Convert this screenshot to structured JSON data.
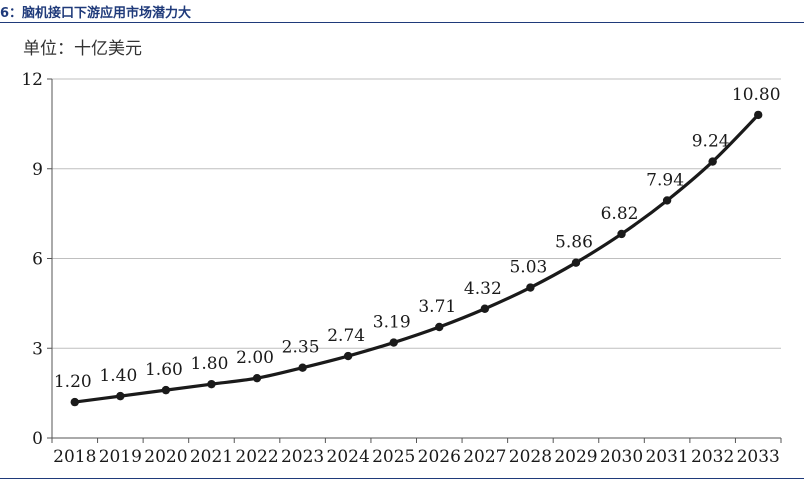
{
  "header": {
    "title": "6：脑机接口下游应用市场潜力大",
    "unit": "单位：十亿美元"
  },
  "chart_data": {
    "type": "line",
    "title": "脑机接口下游应用市场潜力大",
    "xlabel": "",
    "ylabel": "单位：十亿美元",
    "categories": [
      "2018",
      "2019",
      "2020",
      "2021",
      "2022",
      "2023",
      "2024",
      "2025",
      "2026",
      "2027",
      "2028",
      "2029",
      "2030",
      "2031",
      "2032",
      "2033"
    ],
    "series": [
      {
        "values": [
          1.2,
          1.4,
          1.6,
          1.8,
          2.0,
          2.35,
          2.74,
          3.19,
          3.71,
          4.32,
          5.03,
          5.86,
          6.82,
          7.94,
          9.24,
          10.8
        ]
      }
    ],
    "data_labels": [
      "1.20",
      "1.40",
      "1.60",
      "1.80",
      "2.00",
      "2.35",
      "2.74",
      "3.19",
      "3.71",
      "4.32",
      "5.03",
      "5.86",
      "6.82",
      "7.94",
      "9.24",
      "10.80"
    ],
    "ylim": [
      0,
      12
    ],
    "yticks": [
      0,
      3,
      6,
      9,
      12
    ],
    "grid": true,
    "colors": {
      "line": "#1a1a1a",
      "grid": "#bfbfbf",
      "axis": "#555555",
      "title": "#1f3a7a"
    }
  }
}
